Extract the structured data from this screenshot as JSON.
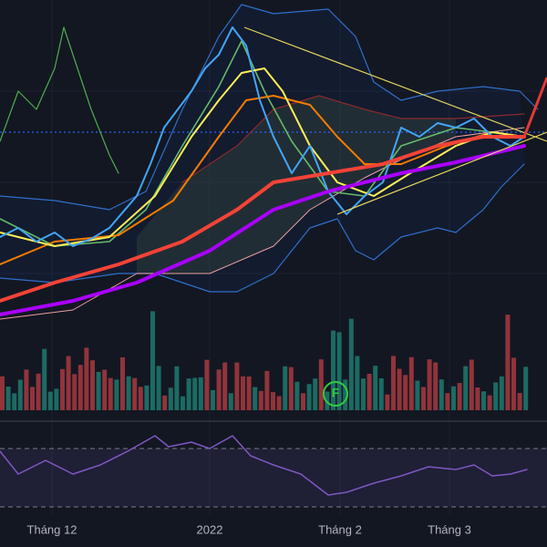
{
  "time_axis": {
    "labels": [
      "Tháng 12",
      "2022",
      "Tháng 2",
      "Tháng 3"
    ]
  },
  "marker": {
    "label": "F"
  }
}
